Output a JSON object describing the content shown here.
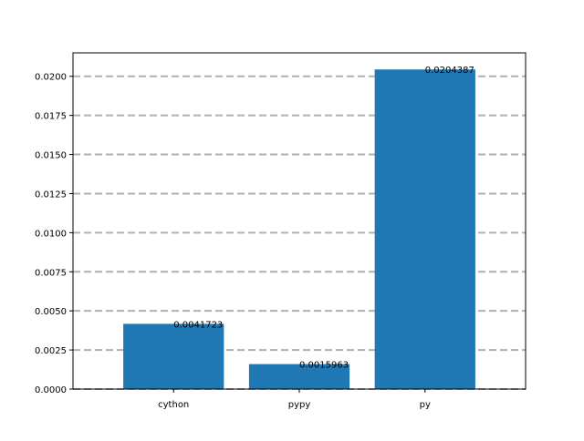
{
  "chart_data": {
    "type": "bar",
    "categories": [
      "cython",
      "pypy",
      "py"
    ],
    "values": [
      0.0041723,
      0.0015963,
      0.0204387
    ],
    "data_labels": [
      "0.0041723",
      "0.0015963",
      "0.0204387"
    ],
    "title": "",
    "xlabel": "",
    "ylabel": "",
    "ylim": [
      0,
      0.0215
    ],
    "yticks": [
      0.0,
      0.0025,
      0.005,
      0.0075,
      0.01,
      0.0125,
      0.015,
      0.0175,
      0.02
    ],
    "ytick_labels": [
      "0.0000",
      "0.0025",
      "0.0050",
      "0.0075",
      "0.0100",
      "0.0125",
      "0.0150",
      "0.0175",
      "0.0200"
    ],
    "grid": {
      "axis": "y",
      "style": "dashed",
      "color": "#b0b0b0"
    },
    "bar_color": "#1f77b4",
    "legend": "none"
  }
}
